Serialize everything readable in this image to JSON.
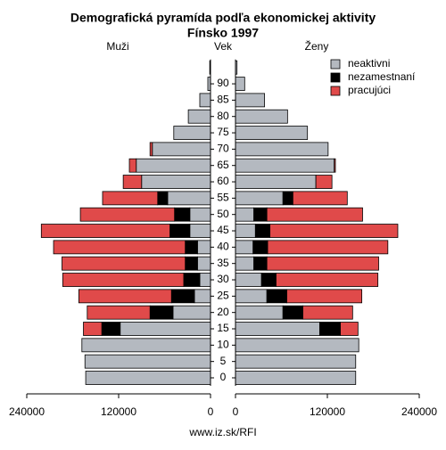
{
  "chart_data": {
    "type": "pyramid",
    "title": "Demografická pyramída podľa ekonomickej aktivity",
    "subtitle": "Fínsko 1997",
    "left_label": "Muži",
    "center_label": "Vek",
    "right_label": "Ženy",
    "source": "www.iz.sk/RFI",
    "categories": [
      "0",
      "5",
      "10",
      "15",
      "20",
      "25",
      "30",
      "35",
      "40",
      "45",
      "50",
      "55",
      "60",
      "65",
      "70",
      "75",
      "80",
      "85",
      "90",
      null
    ],
    "xlim": [
      0,
      240000
    ],
    "xticks": [
      0,
      120000,
      240000
    ],
    "series": [
      {
        "name": "neaktivni",
        "color": "#b4b9c0",
        "male": [
          163000,
          164000,
          168000,
          118000,
          49000,
          21000,
          14000,
          17000,
          17000,
          27000,
          27000,
          56000,
          90000,
          97000,
          76000,
          48000,
          29000,
          14000,
          3500,
          1000
        ],
        "female": [
          157000,
          157000,
          161000,
          110000,
          62000,
          41000,
          34000,
          24000,
          23000,
          26000,
          24000,
          62000,
          105000,
          129000,
          121000,
          94000,
          68000,
          38000,
          12000,
          2000
        ]
      },
      {
        "name": "nezamestnaní",
        "color": "#000000",
        "male": [
          0,
          0,
          0,
          24000,
          30000,
          30000,
          21000,
          16000,
          16000,
          26000,
          20000,
          13000,
          0,
          0,
          0,
          0,
          0,
          0,
          0,
          0
        ],
        "female": [
          0,
          0,
          0,
          27000,
          26000,
          26000,
          19000,
          17000,
          19000,
          19000,
          17000,
          13000,
          0,
          0,
          0,
          0,
          0,
          0,
          0,
          0
        ]
      },
      {
        "name": "pracujúci",
        "color": "#e04a4a",
        "male": [
          0,
          0,
          0,
          24000,
          82000,
          121000,
          158000,
          161000,
          172000,
          168000,
          123000,
          72000,
          24000,
          9000,
          3000,
          0,
          0,
          0,
          0,
          0
        ],
        "female": [
          0,
          0,
          0,
          23000,
          65000,
          98000,
          133000,
          146000,
          157000,
          167000,
          125000,
          71000,
          21000,
          1500,
          0,
          0,
          0,
          0,
          0,
          0
        ]
      }
    ]
  }
}
